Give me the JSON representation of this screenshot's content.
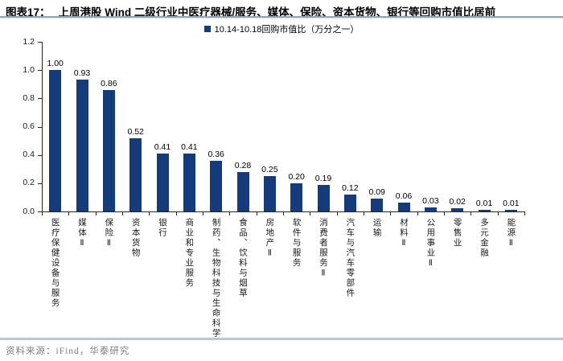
{
  "header": {
    "tag": "图表17：",
    "title": "上周港股 Wind 二级行业中医疗器械/服务、媒体、保险、资本货物、银行等回购市值比居前"
  },
  "legend": {
    "label": "10.14-10.18回购市值比（万分之一）"
  },
  "footer": {
    "source": "资料来源：iFind，华泰研究"
  },
  "colors": {
    "bar": "#143C7C",
    "axis": "#262626",
    "value_label": "#000000",
    "title_rule": "#8FA5BA",
    "footer_rule": "#B9C8D9",
    "source_text": "#7F7F7F"
  },
  "chart_data": {
    "type": "bar",
    "title": "上周港股 Wind 二级行业中医疗器械/服务、媒体、保险、资本货物、银行等回购市值比居前",
    "legend_entries": [
      "10.14-10.18回购市值比（万分之一）"
    ],
    "legend_position": "top-center",
    "grid": false,
    "xlabel": "",
    "ylabel": "",
    "ylim": [
      0,
      1.2
    ],
    "yticks": [
      0.0,
      0.2,
      0.4,
      0.6,
      0.8,
      1.0,
      1.2
    ],
    "categories": [
      "医疗保健设备与服务",
      "媒体Ⅱ",
      "保险Ⅱ",
      "资本货物",
      "银行",
      "商业和专业服务",
      "制药、生物科技与生命科学",
      "食品、饮料与烟草",
      "房地产Ⅱ",
      "软件与服务",
      "消费者服务Ⅱ",
      "汽车与汽车零部件",
      "运输",
      "材料Ⅱ",
      "公用事业Ⅱ",
      "零售业",
      "多元金融",
      "能源Ⅱ"
    ],
    "values": [
      1.0,
      0.93,
      0.86,
      0.52,
      0.41,
      0.41,
      0.36,
      0.28,
      0.25,
      0.2,
      0.19,
      0.12,
      0.09,
      0.06,
      0.03,
      0.02,
      0.01,
      0.01
    ]
  }
}
